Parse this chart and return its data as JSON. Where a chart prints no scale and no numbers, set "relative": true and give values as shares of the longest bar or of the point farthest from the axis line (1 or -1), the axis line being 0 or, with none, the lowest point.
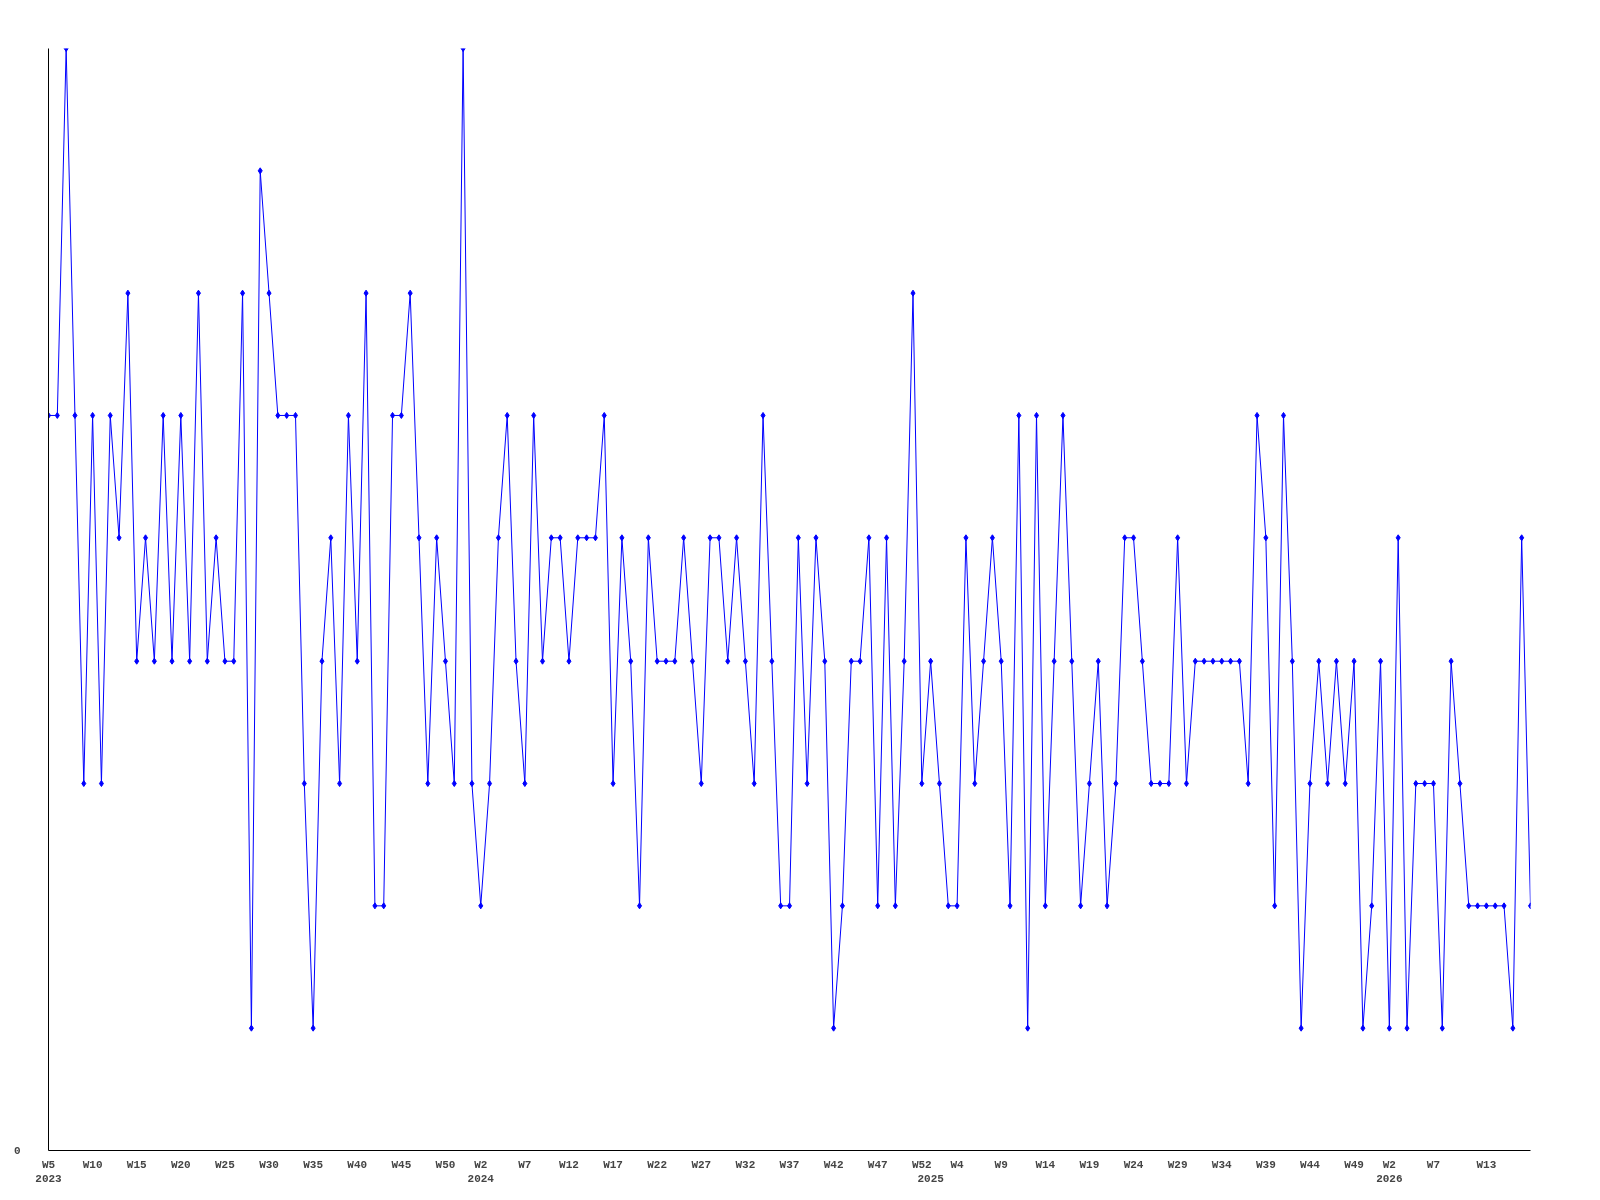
{
  "chart_data": {
    "type": "line",
    "relative": true,
    "marker": "diamond",
    "line_style": "solid",
    "annotations": [
      "0"
    ],
    "categories": [
      "W5\n2023",
      null,
      null,
      null,
      null,
      "W10",
      null,
      null,
      null,
      null,
      "W15",
      null,
      null,
      null,
      null,
      "W20",
      null,
      null,
      null,
      null,
      "W25",
      null,
      null,
      null,
      null,
      "W30",
      null,
      null,
      null,
      null,
      "W35",
      null,
      null,
      null,
      null,
      "W40",
      null,
      null,
      null,
      null,
      "W45",
      null,
      null,
      null,
      null,
      "W50",
      null,
      null,
      null,
      "W2\n2024",
      null,
      null,
      null,
      null,
      "W7",
      null,
      null,
      null,
      null,
      "W12",
      null,
      null,
      null,
      null,
      "W17",
      null,
      null,
      null,
      null,
      "W22",
      null,
      null,
      null,
      null,
      "W27",
      null,
      null,
      null,
      null,
      "W32",
      null,
      null,
      null,
      null,
      "W37",
      null,
      null,
      null,
      null,
      "W42",
      null,
      null,
      null,
      null,
      "W47",
      null,
      null,
      null,
      null,
      "W52",
      "\n2025",
      null,
      null,
      "W4",
      null,
      null,
      null,
      null,
      "W9",
      null,
      null,
      null,
      null,
      "W14",
      null,
      null,
      null,
      null,
      "W19",
      null,
      null,
      null,
      null,
      "W24",
      null,
      null,
      null,
      null,
      "W29",
      null,
      null,
      null,
      null,
      "W34",
      null,
      null,
      null,
      null,
      "W39",
      null,
      null,
      null,
      null,
      "W44",
      null,
      null,
      null,
      null,
      "W49",
      null,
      null,
      null,
      "W2\n2026",
      null,
      null,
      null,
      null,
      "W7",
      null,
      null,
      null,
      null,
      null,
      "W13",
      null,
      null,
      null,
      null,
      null
    ],
    "series": [
      {
        "color": "#0000ff",
        "values": [
          0.667,
          0.667,
          1,
          0.667,
          0.333,
          0.667,
          0.333,
          0.667,
          0.556,
          0.778,
          0.444,
          0.556,
          0.444,
          0.667,
          0.444,
          0.667,
          0.444,
          0.778,
          0.444,
          0.556,
          0.444,
          0.444,
          0.778,
          0.111,
          0.889,
          0.778,
          0.667,
          0.667,
          0.667,
          0.333,
          0.111,
          0.444,
          0.556,
          0.333,
          0.667,
          0.444,
          0.778,
          0.222,
          0.222,
          0.667,
          0.667,
          0.778,
          0.556,
          0.333,
          0.556,
          0.444,
          0.333,
          1,
          0.333,
          0.222,
          0.333,
          0.556,
          0.667,
          0.444,
          0.333,
          0.667,
          0.444,
          0.556,
          0.556,
          0.444,
          0.556,
          0.556,
          0.556,
          0.667,
          0.333,
          0.556,
          0.444,
          0.222,
          0.556,
          0.444,
          0.444,
          0.444,
          0.556,
          0.444,
          0.333,
          0.556,
          0.556,
          0.444,
          0.556,
          0.444,
          0.333,
          0.667,
          0.444,
          0.222,
          0.222,
          0.556,
          0.333,
          0.556,
          0.444,
          0.111,
          0.222,
          0.444,
          0.444,
          0.556,
          0.222,
          0.556,
          0.222,
          0.444,
          0.778,
          0.333,
          0.444,
          0.333,
          0.222,
          0.222,
          0.556,
          0.333,
          0.444,
          0.556,
          0.444,
          0.222,
          0.667,
          0.111,
          0.667,
          0.222,
          0.444,
          0.667,
          0.444,
          0.222,
          0.333,
          0.444,
          0.222,
          0.333,
          0.556,
          0.556,
          0.444,
          0.333,
          0.333,
          0.333,
          0.556,
          0.333,
          0.444,
          0.444,
          0.444,
          0.444,
          0.444,
          0.444,
          0.333,
          0.667,
          0.556,
          0.222,
          0.667,
          0.444,
          0.111,
          0.333,
          0.444,
          0.333,
          0.444,
          0.333,
          0.444,
          0.111,
          0.222,
          0.444,
          0.111,
          0.556,
          0.111,
          0.333,
          0.333,
          0.333,
          0.111,
          0.444,
          0.333,
          0.222,
          0.222,
          0.222,
          0.222,
          0.222,
          0.111,
          0.556,
          0.222
        ]
      }
    ]
  }
}
